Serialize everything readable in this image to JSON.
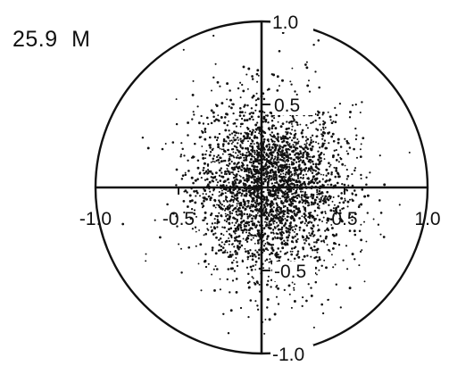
{
  "panel_label": "25.9  M",
  "colors": {
    "ink": "#111111",
    "background": "#ffffff"
  },
  "chart_data": {
    "type": "scatter",
    "title": "",
    "xlabel": "",
    "ylabel": "",
    "xlim": [
      -1.0,
      1.0
    ],
    "ylim": [
      -1.0,
      1.0
    ],
    "grid": false,
    "frame": "unit-circle",
    "x_tick_labels": [
      {
        "value": -1.0,
        "label": "-1.0"
      },
      {
        "value": -0.5,
        "label": "-0.5"
      },
      {
        "value": 0.5,
        "label": "0.5"
      },
      {
        "value": 1.0,
        "label": "1.0"
      }
    ],
    "y_tick_labels": [
      {
        "value": 1.0,
        "label": "1.0"
      },
      {
        "value": 0.5,
        "label": "0.5"
      },
      {
        "value": -0.5,
        "label": "-0.5"
      },
      {
        "value": -1.0,
        "label": "-1.0"
      }
    ],
    "point_cloud": {
      "center": [
        0.05,
        0.0
      ],
      "spread_sd": [
        0.22,
        0.26
      ],
      "approx_points": 3000
    }
  }
}
